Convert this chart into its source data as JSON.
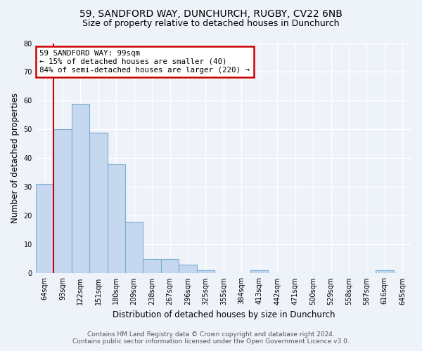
{
  "title_line1": "59, SANDFORD WAY, DUNCHURCH, RUGBY, CV22 6NB",
  "title_line2": "Size of property relative to detached houses in Dunchurch",
  "xlabel": "Distribution of detached houses by size in Dunchurch",
  "ylabel": "Number of detached properties",
  "footer_line1": "Contains HM Land Registry data © Crown copyright and database right 2024.",
  "footer_line2": "Contains public sector information licensed under the Open Government Licence v3.0.",
  "categories": [
    "64sqm",
    "93sqm",
    "122sqm",
    "151sqm",
    "180sqm",
    "209sqm",
    "238sqm",
    "267sqm",
    "296sqm",
    "325sqm",
    "355sqm",
    "384sqm",
    "413sqm",
    "442sqm",
    "471sqm",
    "500sqm",
    "529sqm",
    "558sqm",
    "587sqm",
    "616sqm",
    "645sqm"
  ],
  "values": [
    31,
    50,
    59,
    49,
    38,
    18,
    5,
    5,
    3,
    1,
    0,
    0,
    1,
    0,
    0,
    0,
    0,
    0,
    0,
    1,
    0
  ],
  "bar_color": "#c5d8ef",
  "bar_edge_color": "#7aafd4",
  "property_line_x": 0.5,
  "annotation_text": "59 SANDFORD WAY: 99sqm\n← 15% of detached houses are smaller (40)\n84% of semi-detached houses are larger (220) →",
  "annotation_box_color": "#ffffff",
  "annotation_box_edge_color": "#cc0000",
  "property_line_color": "#cc0000",
  "ylim": [
    0,
    80
  ],
  "yticks": [
    0,
    10,
    20,
    30,
    40,
    50,
    60,
    70,
    80
  ],
  "background_color": "#eef2f9",
  "grid_color": "#ffffff",
  "title_fontsize": 10,
  "subtitle_fontsize": 9,
  "axis_label_fontsize": 8.5,
  "tick_fontsize": 7,
  "footer_fontsize": 6.5
}
